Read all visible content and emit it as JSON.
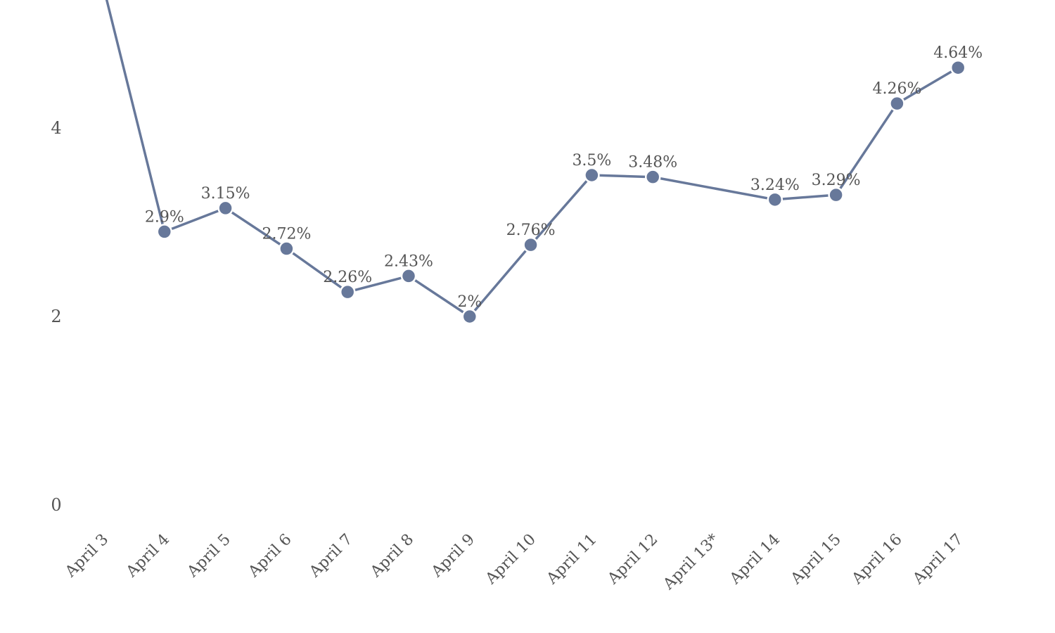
{
  "chart_data": {
    "type": "line",
    "categories": [
      "April 3",
      "April 4",
      "April 5",
      "April 6",
      "April 7",
      "April 8",
      "April 9",
      "April 10",
      "April 11",
      "April 12",
      "April 13*",
      "April 14",
      "April 15",
      "April 16",
      "April 17"
    ],
    "values": [
      5.5,
      2.9,
      3.15,
      2.72,
      2.26,
      2.43,
      2,
      2.76,
      3.5,
      3.48,
      null,
      3.24,
      3.29,
      4.26,
      4.64
    ],
    "data_labels": [
      "",
      "2.9%",
      "3.15%",
      "2.72%",
      "2.26%",
      "2.43%",
      "2%",
      "2.76%",
      "3.5%",
      "3.48%",
      "",
      "3.24%",
      "3.29%",
      "4.26%",
      "4.64%"
    ],
    "yticks": [
      0,
      2,
      4
    ],
    "ylim": [
      0,
      5.4
    ],
    "grid": false,
    "legend": "none",
    "line_color": "#67789a",
    "title": "",
    "xlabel": "",
    "ylabel": ""
  }
}
